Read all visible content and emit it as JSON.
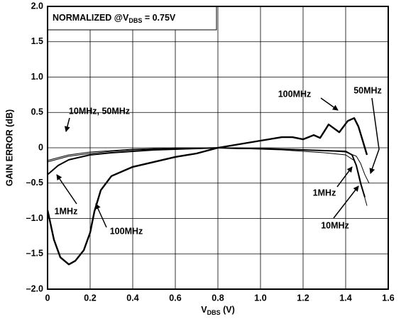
{
  "chart_data": {
    "type": "line",
    "annotation": {
      "text": "NORMALIZED @V",
      "sub": "DBS",
      "rest": " = 0.75V"
    },
    "ylabel": "GAIN ERROR (dB)",
    "xlabel": {
      "text": "V",
      "sub": "DBS",
      "rest": " (V)"
    },
    "xlim": [
      0,
      1.6
    ],
    "ylim": [
      -2,
      2
    ],
    "xticks": [
      0,
      0.2,
      0.4,
      0.6,
      0.8,
      {
        "value": 1,
        "label": "1.0"
      },
      1.2,
      1.4,
      1.6
    ],
    "yticks": [
      {
        "value": -2,
        "label": "–2.0"
      },
      {
        "value": -1.5,
        "label": "–1.5"
      },
      {
        "value": -1,
        "label": "–1.0"
      },
      {
        "value": -0.5,
        "label": "–0.5"
      },
      0,
      0.5,
      {
        "value": 1,
        "label": "1.0"
      },
      1.5,
      {
        "value": 2,
        "label": "2.0"
      }
    ],
    "grid": true,
    "series": [
      {
        "name": "1MHz",
        "color": "#000000",
        "line_width": 2,
        "x": [
          0,
          0.05,
          0.1,
          0.2,
          0.3,
          0.4,
          0.5,
          0.6,
          0.7,
          0.8,
          0.9,
          1.0,
          1.1,
          1.2,
          1.3,
          1.4,
          1.43,
          1.45,
          1.47,
          1.49
        ],
        "values": [
          -0.38,
          -0.25,
          -0.17,
          -0.1,
          -0.07,
          -0.05,
          -0.03,
          -0.02,
          -0.01,
          0,
          -0.01,
          -0.01,
          -0.02,
          -0.03,
          -0.04,
          -0.05,
          -0.1,
          -0.25,
          -0.5,
          -0.7
        ]
      },
      {
        "name": "10MHz",
        "color": "#000000",
        "line_width": 1,
        "x": [
          0,
          0.05,
          0.1,
          0.2,
          0.3,
          0.4,
          0.5,
          0.6,
          0.7,
          0.8,
          0.9,
          1.0,
          1.1,
          1.2,
          1.3,
          1.4,
          1.44,
          1.46,
          1.48,
          1.5
        ],
        "values": [
          -0.2,
          -0.16,
          -0.12,
          -0.08,
          -0.05,
          -0.03,
          -0.02,
          -0.01,
          0,
          0,
          -0.01,
          -0.02,
          -0.03,
          -0.05,
          -0.07,
          -0.1,
          -0.18,
          -0.35,
          -0.6,
          -0.82
        ]
      },
      {
        "name": "50MHz",
        "color": "#000000",
        "line_width": 1,
        "x": [
          0,
          0.05,
          0.1,
          0.2,
          0.3,
          0.4,
          0.5,
          0.6,
          0.7,
          0.8,
          0.9,
          1.0,
          1.1,
          1.2,
          1.3,
          1.4,
          1.45,
          1.47,
          1.49,
          1.51
        ],
        "values": [
          -0.18,
          -0.14,
          -0.1,
          -0.06,
          -0.04,
          -0.02,
          -0.01,
          0,
          0,
          0,
          0,
          -0.01,
          -0.02,
          -0.03,
          -0.04,
          -0.06,
          -0.12,
          -0.22,
          -0.38,
          -0.5
        ]
      },
      {
        "name": "100MHz",
        "color": "#000000",
        "line_width": 2.4,
        "x": [
          0,
          0.03,
          0.06,
          0.1,
          0.13,
          0.17,
          0.2,
          0.22,
          0.25,
          0.3,
          0.4,
          0.5,
          0.6,
          0.7,
          0.8,
          0.9,
          1.0,
          1.1,
          1.15,
          1.2,
          1.25,
          1.28,
          1.32,
          1.37,
          1.41,
          1.44,
          1.46,
          1.48,
          1.5
        ],
        "values": [
          -0.88,
          -1.3,
          -1.55,
          -1.65,
          -1.6,
          -1.45,
          -1.2,
          -0.9,
          -0.6,
          -0.4,
          -0.27,
          -0.2,
          -0.13,
          -0.08,
          0,
          0.05,
          0.1,
          0.15,
          0.15,
          0.12,
          0.18,
          0.14,
          0.33,
          0.22,
          0.38,
          0.42,
          0.3,
          0.1,
          -0.1
        ]
      }
    ],
    "annotations": [
      "10MHz, 50MHz",
      "1MHz",
      "100MHz",
      "100MHz",
      "50MHz",
      "1MHz",
      "10MHz"
    ]
  }
}
